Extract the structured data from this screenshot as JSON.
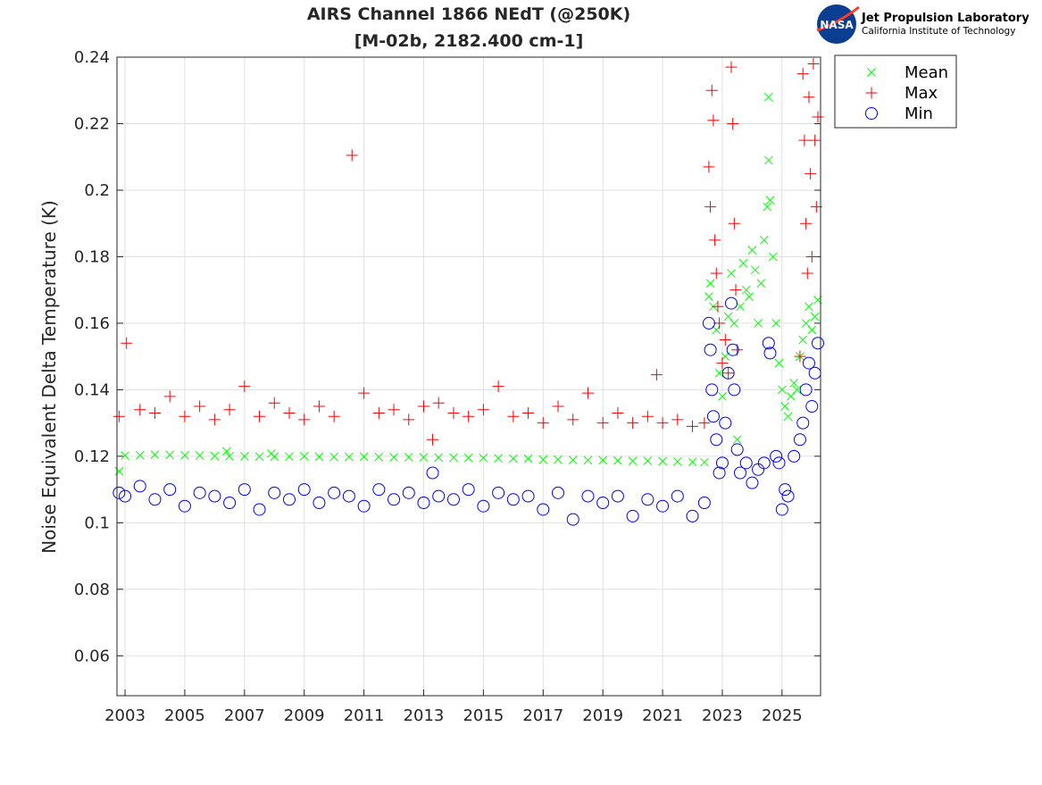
{
  "chart_data": {
    "type": "scatter",
    "title": [
      "AIRS Channel 1866 NEdT (@250K)",
      "[M-02b, 2182.400 cm-1]"
    ],
    "xlabel": "",
    "ylabel": "Noise Equivalent Delta Temperature (K)",
    "xlim": [
      2002.73,
      2026.29
    ],
    "ylim": [
      0.048,
      0.24
    ],
    "xticks": [
      2003,
      2005,
      2007,
      2009,
      2011,
      2013,
      2015,
      2017,
      2019,
      2021,
      2023,
      2025
    ],
    "yticks": [
      0.06,
      0.08,
      0.1,
      0.12,
      0.14,
      0.16,
      0.18,
      0.2,
      0.22,
      0.24
    ],
    "ytick_labels": [
      "0.06",
      "0.08",
      "0.1",
      "0.12",
      "0.14",
      "0.16",
      "0.18",
      "0.2",
      "0.22",
      "0.24"
    ],
    "grid": true,
    "legend_position": "outside-top-right",
    "series": [
      {
        "name": "Mean",
        "marker": "x",
        "color": "#00ff00",
        "x": [
          2002.8,
          2003.0,
          2003.5,
          2004.0,
          2004.5,
          2005.0,
          2005.5,
          2006.0,
          2006.4,
          2006.5,
          2007.0,
          2007.5,
          2007.9,
          2008.0,
          2008.5,
          2009.0,
          2009.5,
          2010.0,
          2010.5,
          2011.0,
          2011.5,
          2012.0,
          2012.5,
          2013.0,
          2013.5,
          2014.0,
          2014.5,
          2015.0,
          2015.5,
          2016.0,
          2016.5,
          2017.0,
          2017.5,
          2018.0,
          2018.5,
          2019.0,
          2019.5,
          2020.0,
          2020.5,
          2021.0,
          2021.5,
          2022.0,
          2022.4,
          2022.55,
          2022.6,
          2022.7,
          2022.8,
          2022.9,
          2023.0,
          2023.1,
          2023.2,
          2023.3,
          2023.4,
          2023.5,
          2023.6,
          2023.7,
          2023.8,
          2023.9,
          2024.0,
          2024.1,
          2024.2,
          2024.3,
          2024.4,
          2024.5,
          2024.55,
          2024.55,
          2024.6,
          2024.7,
          2024.8,
          2024.9,
          2025.0,
          2025.1,
          2025.2,
          2025.3,
          2025.4,
          2025.5,
          2025.6,
          2025.7,
          2025.8,
          2025.9,
          2026.0,
          2026.1,
          2026.2
        ],
        "y": [
          0.1155,
          0.1202,
          0.1203,
          0.1205,
          0.1204,
          0.1203,
          0.1202,
          0.1201,
          0.1215,
          0.12,
          0.12,
          0.1199,
          0.1208,
          0.1199,
          0.1199,
          0.12,
          0.1199,
          0.1198,
          0.1198,
          0.1199,
          0.1198,
          0.1197,
          0.1197,
          0.1197,
          0.1196,
          0.1196,
          0.1195,
          0.1195,
          0.1194,
          0.1193,
          0.1193,
          0.119,
          0.119,
          0.1189,
          0.1188,
          0.1188,
          0.1187,
          0.1186,
          0.1186,
          0.1185,
          0.1184,
          0.1183,
          0.1182,
          0.168,
          0.172,
          0.165,
          0.158,
          0.145,
          0.138,
          0.15,
          0.162,
          0.175,
          0.16,
          0.125,
          0.165,
          0.178,
          0.17,
          0.168,
          0.182,
          0.176,
          0.16,
          0.172,
          0.185,
          0.195,
          0.228,
          0.209,
          0.197,
          0.18,
          0.16,
          0.148,
          0.14,
          0.135,
          0.132,
          0.138,
          0.142,
          0.14,
          0.15,
          0.155,
          0.16,
          0.165,
          0.158,
          0.162,
          0.167
        ]
      },
      {
        "name": "Max",
        "marker": "+",
        "color": "#ff0000",
        "x": [
          2002.8,
          2003.05,
          2003.5,
          2004.0,
          2004.5,
          2005.0,
          2005.5,
          2006.0,
          2006.5,
          2007.0,
          2007.5,
          2008.0,
          2008.5,
          2009.0,
          2009.5,
          2010.0,
          2010.6,
          2011.0,
          2011.5,
          2012.0,
          2012.5,
          2013.0,
          2013.3,
          2013.5,
          2014.0,
          2014.5,
          2015.0,
          2015.5,
          2016.0,
          2016.5,
          2017.0,
          2017.5,
          2018.0,
          2018.5,
          2019.0,
          2019.5,
          2020.0,
          2020.5,
          2020.8,
          2021.0,
          2021.5,
          2022.0,
          2022.4,
          2022.55,
          2022.6,
          2022.65,
          2022.7,
          2022.75,
          2022.8,
          2022.85,
          2022.9,
          2023.0,
          2023.1,
          2023.2,
          2023.3,
          2023.35,
          2023.4,
          2023.45,
          2023.5,
          2025.6,
          2025.7,
          2025.75,
          2025.8,
          2025.85,
          2025.9,
          2025.95,
          2026.0,
          2026.05,
          2026.1,
          2026.15,
          2026.2
        ],
        "y": [
          0.132,
          0.154,
          0.134,
          0.133,
          0.138,
          0.132,
          0.135,
          0.131,
          0.134,
          0.141,
          0.132,
          0.136,
          0.133,
          0.131,
          0.135,
          0.132,
          0.2105,
          0.139,
          0.133,
          0.134,
          0.131,
          0.135,
          0.125,
          0.136,
          0.133,
          0.132,
          0.134,
          0.141,
          0.132,
          0.133,
          0.13,
          0.135,
          0.131,
          0.139,
          0.13,
          0.133,
          0.13,
          0.132,
          0.1445,
          0.13,
          0.131,
          0.129,
          0.13,
          0.207,
          0.195,
          0.23,
          0.221,
          0.185,
          0.175,
          0.165,
          0.16,
          0.148,
          0.155,
          0.145,
          0.237,
          0.22,
          0.19,
          0.17,
          0.152,
          0.15,
          0.235,
          0.215,
          0.19,
          0.175,
          0.228,
          0.205,
          0.18,
          0.238,
          0.215,
          0.195,
          0.222
        ]
      },
      {
        "name": "Min",
        "marker": "o",
        "color": "#0000ff",
        "x": [
          2002.8,
          2003.0,
          2003.5,
          2004.0,
          2004.5,
          2005.0,
          2005.5,
          2006.0,
          2006.5,
          2007.0,
          2007.5,
          2008.0,
          2008.5,
          2009.0,
          2009.5,
          2010.0,
          2010.5,
          2011.0,
          2011.5,
          2012.0,
          2012.5,
          2013.0,
          2013.3,
          2013.5,
          2014.0,
          2014.5,
          2015.0,
          2015.5,
          2016.0,
          2016.5,
          2017.0,
          2017.5,
          2018.0,
          2018.5,
          2019.0,
          2019.5,
          2020.0,
          2020.5,
          2021.0,
          2021.5,
          2022.0,
          2022.4,
          2022.55,
          2022.6,
          2022.65,
          2022.7,
          2022.8,
          2022.9,
          2023.0,
          2023.1,
          2023.2,
          2023.3,
          2023.35,
          2023.4,
          2023.5,
          2023.6,
          2023.8,
          2024.0,
          2024.2,
          2024.4,
          2024.55,
          2024.6,
          2024.8,
          2024.9,
          2025.0,
          2025.1,
          2025.2,
          2025.4,
          2025.6,
          2025.7,
          2025.8,
          2025.9,
          2026.0,
          2026.1,
          2026.2
        ],
        "y": [
          0.109,
          0.108,
          0.111,
          0.107,
          0.11,
          0.105,
          0.109,
          0.108,
          0.106,
          0.11,
          0.104,
          0.109,
          0.107,
          0.11,
          0.106,
          0.109,
          0.108,
          0.105,
          0.11,
          0.107,
          0.109,
          0.106,
          0.115,
          0.108,
          0.107,
          0.11,
          0.105,
          0.109,
          0.107,
          0.108,
          0.104,
          0.109,
          0.101,
          0.108,
          0.106,
          0.108,
          0.102,
          0.107,
          0.105,
          0.108,
          0.102,
          0.106,
          0.16,
          0.152,
          0.14,
          0.132,
          0.125,
          0.115,
          0.118,
          0.13,
          0.145,
          0.166,
          0.152,
          0.14,
          0.122,
          0.115,
          0.118,
          0.112,
          0.116,
          0.118,
          0.154,
          0.151,
          0.12,
          0.118,
          0.104,
          0.11,
          0.108,
          0.12,
          0.125,
          0.13,
          0.14,
          0.148,
          0.135,
          0.145,
          0.154
        ]
      }
    ]
  },
  "logo": {
    "org": "NASA",
    "line1": "Jet Propulsion Laboratory",
    "line2": "California Institute of Technology"
  }
}
